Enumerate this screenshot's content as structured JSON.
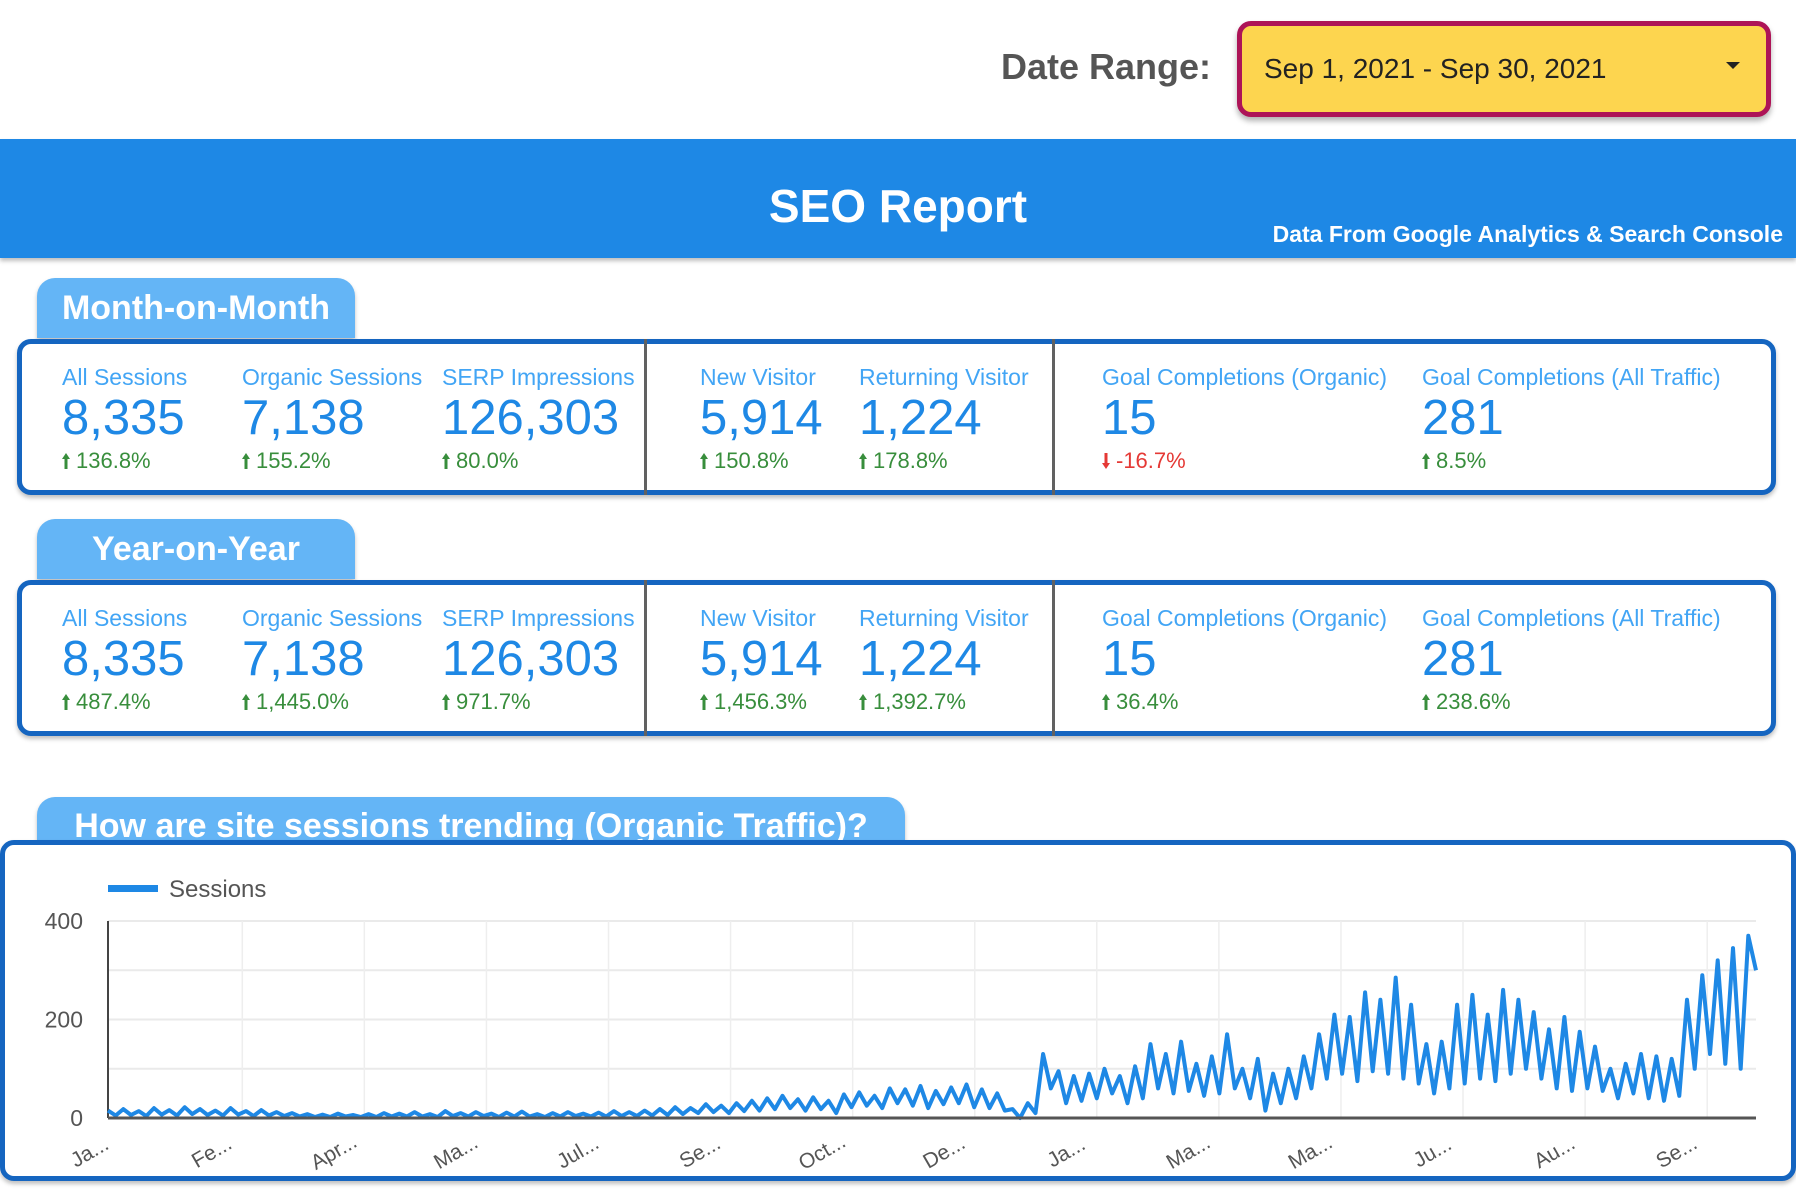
{
  "date_range": {
    "label": "Date Range:",
    "value": "Sep 1, 2021 - Sep 30, 2021"
  },
  "header": {
    "title": "SEO Report",
    "subtitle": "Data From Google Analytics & Search Console"
  },
  "colors": {
    "header": "#1e88e5",
    "pill": "#64b5f6",
    "card_border": "#1565c0",
    "up": "#388e3c",
    "down": "#e53935",
    "dropdown": "#fdd54f",
    "dropdown_border": "#ad1457"
  },
  "sections": [
    {
      "title": "Month-on-Month",
      "metrics": [
        {
          "label": "All Sessions",
          "value": "8,335",
          "change": "136.8%",
          "dir": "up"
        },
        {
          "label": "Organic Sessions",
          "value": "7,138",
          "change": "155.2%",
          "dir": "up"
        },
        {
          "label": "SERP Impressions",
          "value": "126,303",
          "change": "80.0%",
          "dir": "up"
        },
        {
          "label": "New Visitor",
          "value": "5,914",
          "change": "150.8%",
          "dir": "up"
        },
        {
          "label": "Returning Visitor",
          "value": "1,224",
          "change": "178.8%",
          "dir": "up"
        },
        {
          "label": "Goal Completions (Organic)",
          "value": "15",
          "change": "-16.7%",
          "dir": "down"
        },
        {
          "label": "Goal Completions (All Traffic)",
          "value": "281",
          "change": "8.5%",
          "dir": "up"
        }
      ]
    },
    {
      "title": "Year-on-Year",
      "metrics": [
        {
          "label": "All Sessions",
          "value": "8,335",
          "change": "487.4%",
          "dir": "up"
        },
        {
          "label": "Organic Sessions",
          "value": "7,138",
          "change": "1,445.0%",
          "dir": "up"
        },
        {
          "label": "SERP Impressions",
          "value": "126,303",
          "change": "971.7%",
          "dir": "up"
        },
        {
          "label": "New Visitor",
          "value": "5,914",
          "change": "1,456.3%",
          "dir": "up"
        },
        {
          "label": "Returning Visitor",
          "value": "1,224",
          "change": "1,392.7%",
          "dir": "up"
        },
        {
          "label": "Goal Completions (Organic)",
          "value": "15",
          "change": "36.4%",
          "dir": "up"
        },
        {
          "label": "Goal Completions (All Traffic)",
          "value": "281",
          "change": "238.6%",
          "dir": "up"
        }
      ]
    }
  ],
  "chart_title": "How are site sessions trending (Organic Traffic)?",
  "chart_data": {
    "type": "line",
    "title": "",
    "legend": {
      "position": "top-left",
      "entries": [
        "Sessions"
      ]
    },
    "series": [
      {
        "name": "Sessions",
        "color": "#1e88e5",
        "values": [
          15,
          5,
          18,
          6,
          14,
          4,
          20,
          7,
          16,
          5,
          22,
          8,
          18,
          6,
          15,
          5,
          20,
          7,
          14,
          4,
          16,
          5,
          12,
          4,
          10,
          3,
          8,
          2,
          7,
          2,
          9,
          3,
          6,
          2,
          8,
          2,
          10,
          3,
          9,
          3,
          12,
          3,
          8,
          2,
          14,
          4,
          10,
          3,
          12,
          4,
          9,
          2,
          11,
          3,
          13,
          3,
          8,
          2,
          10,
          3,
          12,
          4,
          9,
          3,
          11,
          3,
          14,
          4,
          12,
          4,
          15,
          5,
          18,
          6,
          22,
          8,
          20,
          10,
          28,
          12,
          25,
          10,
          30,
          14,
          35,
          15,
          40,
          18,
          45,
          20,
          38,
          15,
          42,
          18,
          35,
          10,
          48,
          22,
          52,
          25,
          45,
          20,
          60,
          30,
          58,
          25,
          65,
          20,
          55,
          28,
          62,
          30,
          68,
          22,
          58,
          20,
          50,
          15,
          18,
          0,
          30,
          10,
          130,
          60,
          95,
          30,
          85,
          35,
          90,
          40,
          100,
          50,
          85,
          30,
          105,
          40,
          150,
          60,
          130,
          50,
          155,
          55,
          110,
          45,
          125,
          50,
          170,
          60,
          100,
          40,
          120,
          15,
          90,
          30,
          100,
          40,
          125,
          60,
          170,
          80,
          210,
          90,
          205,
          75,
          255,
          95,
          240,
          90,
          285,
          80,
          230,
          70,
          150,
          50,
          155,
          60,
          230,
          70,
          250,
          80,
          210,
          75,
          260,
          90,
          240,
          100,
          215,
          80,
          180,
          60,
          205,
          55,
          175,
          60,
          145,
          55,
          100,
          40,
          110,
          50,
          130,
          40,
          125,
          35,
          120,
          45,
          240,
          100,
          290,
          130,
          320,
          110,
          345,
          100,
          370,
          300
        ]
      }
    ],
    "x_tick_labels": [
      "Ja...",
      "Fe...",
      "Apr...",
      "Ma...",
      "Jul...",
      "Se...",
      "Oct...",
      "De...",
      "Ja...",
      "Ma...",
      "Ma...",
      "Ju...",
      "Au...",
      "Se..."
    ],
    "y_ticks": [
      0,
      200,
      400
    ],
    "ylim": [
      0,
      400
    ],
    "grid": true
  }
}
